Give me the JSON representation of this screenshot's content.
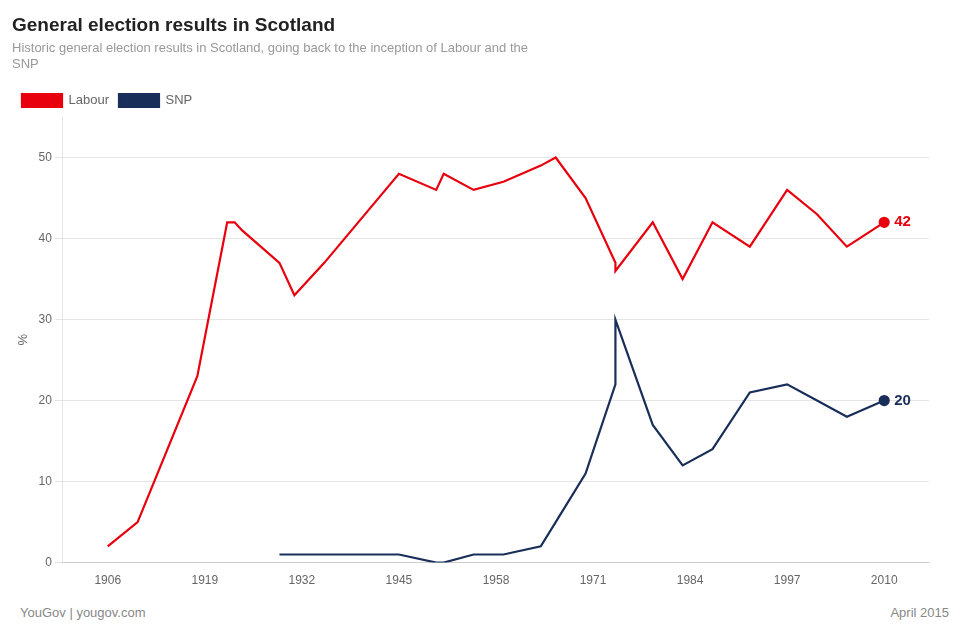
{
  "chart_data": {
    "type": "line",
    "title": "General election results in Scotland",
    "subtitle": "Historic general election results in Scotland, going back to the inception of Labour and the\nSNP",
    "ylabel": "%",
    "series": [
      {
        "name": "Labour",
        "color": "#e8000d",
        "x": [
          1906,
          1910,
          1918,
          1922,
          1923,
          1924,
          1929,
          1931,
          1935,
          1945,
          1950,
          1951,
          1955,
          1959,
          1964,
          1966,
          1970,
          1974,
          1974,
          1979,
          1983,
          1987,
          1992,
          1997,
          2001,
          2005,
          2010
        ],
        "values": [
          2,
          5,
          23,
          42,
          42,
          41,
          37,
          33,
          37,
          48,
          46,
          48,
          46,
          47,
          49,
          50,
          45,
          37,
          36,
          42,
          35,
          42,
          39,
          46,
          43,
          39,
          42
        ]
      },
      {
        "name": "SNP",
        "color": "#1a2e5a",
        "x": [
          1929,
          1931,
          1935,
          1945,
          1950,
          1951,
          1955,
          1959,
          1964,
          1966,
          1970,
          1974,
          1974,
          1979,
          1983,
          1987,
          1992,
          1997,
          2001,
          2005,
          2010
        ],
        "values": [
          1,
          1,
          1,
          1,
          0,
          0,
          1,
          1,
          2,
          5,
          11,
          22,
          30,
          17,
          12,
          14,
          21,
          22,
          20,
          18,
          20
        ]
      }
    ],
    "annotations": [
      {
        "series": "Labour",
        "x": 2010,
        "y": 42,
        "text": "42"
      },
      {
        "series": "SNP",
        "x": 2010,
        "y": 20,
        "text": "20"
      }
    ],
    "xlim": [
      1900,
      2016
    ],
    "xticks": [
      1906,
      1919,
      1932,
      1945,
      1958,
      1971,
      1984,
      1997,
      2010
    ],
    "ylim": [
      0,
      55
    ],
    "yticks": [
      0,
      10,
      20,
      30,
      40,
      50
    ],
    "grid": "y",
    "legend": "upper left",
    "footer_left": "YouGov | yougov.com",
    "footer_right": "April 2015"
  }
}
